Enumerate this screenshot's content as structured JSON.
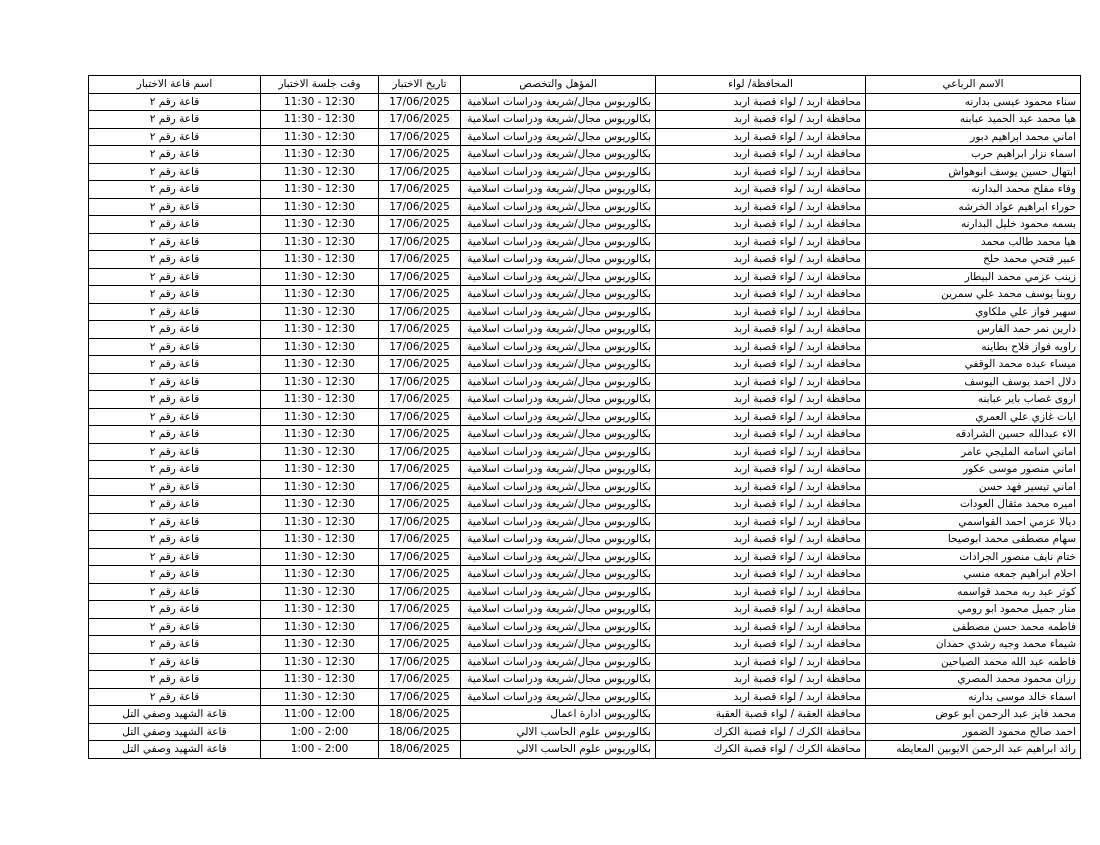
{
  "table": {
    "headers": [
      "الاسم الرباعي",
      "المحافظة/ لواء",
      "المؤهل والتخصص",
      "تاريخ الاختبار",
      "وقت جلسة الاختبار",
      "اسم قاعة الاختبار"
    ],
    "rows": [
      [
        "سناء محمود عيسى بدارنه",
        "محافظة اربد / لواء قصبة اربد",
        "بكالوريوس مجال/شريعة ودراسات اسلامية",
        "17/06/2025",
        "11:30 - 12:30",
        "قاعة رقم ٢"
      ],
      [
        "هيا محمد عبد الحميد عبابنه",
        "محافظة اربد / لواء قصبة اربد",
        "بكالوريوس مجال/شريعة ودراسات اسلامية",
        "17/06/2025",
        "11:30 - 12:30",
        "قاعة رقم ٢"
      ],
      [
        "اماني محمد ابراهيم دبور",
        "محافظة اربد / لواء قصبة اربد",
        "بكالوريوس مجال/شريعة ودراسات اسلامية",
        "17/06/2025",
        "11:30 - 12:30",
        "قاعة رقم ٢"
      ],
      [
        "اسماء نزار ابراهيم حرب",
        "محافظة اربد / لواء قصبة اربد",
        "بكالوريوس مجال/شريعة ودراسات اسلامية",
        "17/06/2025",
        "11:30 - 12:30",
        "قاعة رقم ٢"
      ],
      [
        "ابتهال حسين يوسف ابوهواش",
        "محافظة اربد / لواء قصبة اربد",
        "بكالوريوس مجال/شريعة ودراسات اسلامية",
        "17/06/2025",
        "11:30 - 12:30",
        "قاعة رقم ٢"
      ],
      [
        "وفاء مفلح محمد البدارنه",
        "محافظة اربد / لواء قصبة اربد",
        "بكالوريوس مجال/شريعة ودراسات اسلامية",
        "17/06/2025",
        "11:30 - 12:30",
        "قاعة رقم ٢"
      ],
      [
        "حوراء ابراهيم عواد الخرشه",
        "محافظة اربد / لواء قصبة اربد",
        "بكالوريوس مجال/شريعة ودراسات اسلامية",
        "17/06/2025",
        "11:30 - 12:30",
        "قاعة رقم ٢"
      ],
      [
        "بسمه محمود خليل البدارنه",
        "محافظة اربد / لواء قصبة اربد",
        "بكالوريوس مجال/شريعة ودراسات اسلامية",
        "17/06/2025",
        "11:30 - 12:30",
        "قاعة رقم ٢"
      ],
      [
        "هيا محمد طالب محمد",
        "محافظة اربد / لواء قصبة اربد",
        "بكالوريوس مجال/شريعة ودراسات اسلامية",
        "17/06/2025",
        "11:30 - 12:30",
        "قاعة رقم ٢"
      ],
      [
        "عبير فتحي محمد حلح",
        "محافظة اربد / لواء قصبة اربد",
        "بكالوريوس مجال/شريعة ودراسات اسلامية",
        "17/06/2025",
        "11:30 - 12:30",
        "قاعة رقم ٢"
      ],
      [
        "زينب عزمي محمد البيطار",
        "محافظة اربد / لواء قصبة اربد",
        "بكالوريوس مجال/شريعة ودراسات اسلامية",
        "17/06/2025",
        "11:30 - 12:30",
        "قاعة رقم ٢"
      ],
      [
        "روبنا يوسف محمد علي سمرين",
        "محافظة اربد / لواء قصبة اربد",
        "بكالوريوس مجال/شريعة ودراسات اسلامية",
        "17/06/2025",
        "11:30 - 12:30",
        "قاعة رقم ٢"
      ],
      [
        "سهير فواز علي ملكاوي",
        "محافظة اربد / لواء قصبة اربد",
        "بكالوريوس مجال/شريعة ودراسات اسلامية",
        "17/06/2025",
        "11:30 - 12:30",
        "قاعة رقم ٢"
      ],
      [
        "دارين نمر حمد الفارس",
        "محافظة اربد / لواء قصبة اربد",
        "بكالوريوس مجال/شريعة ودراسات اسلامية",
        "17/06/2025",
        "11:30 - 12:30",
        "قاعة رقم ٢"
      ],
      [
        "راويه فواز فلاح بطاينه",
        "محافظة اربد / لواء قصبة اربد",
        "بكالوريوس مجال/شريعة ودراسات اسلامية",
        "17/06/2025",
        "11:30 - 12:30",
        "قاعة رقم ٢"
      ],
      [
        "ميساء عبده محمد الوقفي",
        "محافظة اربد / لواء قصبة اربد",
        "بكالوريوس مجال/شريعة ودراسات اسلامية",
        "17/06/2025",
        "11:30 - 12:30",
        "قاعة رقم ٢"
      ],
      [
        "دلال احمد يوسف اليوسف",
        "محافظة اربد / لواء قصبة اربد",
        "بكالوريوس مجال/شريعة ودراسات اسلامية",
        "17/06/2025",
        "11:30 - 12:30",
        "قاعة رقم ٢"
      ],
      [
        "اروى غصاب باير عبابنه",
        "محافظة اربد / لواء قصبة اربد",
        "بكالوريوس مجال/شريعة ودراسات اسلامية",
        "17/06/2025",
        "11:30 - 12:30",
        "قاعة رقم ٢"
      ],
      [
        "ايات غازي علي العمري",
        "محافظة اربد / لواء قصبة اربد",
        "بكالوريوس مجال/شريعة ودراسات اسلامية",
        "17/06/2025",
        "11:30 - 12:30",
        "قاعة رقم ٢"
      ],
      [
        "الاء عبدالله حسين الشرادقه",
        "محافظة اربد / لواء قصبة اربد",
        "بكالوريوس مجال/شريعة ودراسات اسلامية",
        "17/06/2025",
        "11:30 - 12:30",
        "قاعة رقم ٢"
      ],
      [
        "اماني اسامه المليجي عامر",
        "محافظة اربد / لواء قصبة اربد",
        "بكالوريوس مجال/شريعة ودراسات اسلامية",
        "17/06/2025",
        "11:30 - 12:30",
        "قاعة رقم ٢"
      ],
      [
        "اماني منصور موسى عكور",
        "محافظة اربد / لواء قصبة اربد",
        "بكالوريوس مجال/شريعة ودراسات اسلامية",
        "17/06/2025",
        "11:30 - 12:30",
        "قاعة رقم ٢"
      ],
      [
        "اماني تيسير فهد حسن",
        "محافظة اربد / لواء قصبة اربد",
        "بكالوريوس مجال/شريعة ودراسات اسلامية",
        "17/06/2025",
        "11:30 - 12:30",
        "قاعة رقم ٢"
      ],
      [
        "اميره محمد مثقال العودات",
        "محافظة اربد / لواء قصبة اربد",
        "بكالوريوس مجال/شريعة ودراسات اسلامية",
        "17/06/2025",
        "11:30 - 12:30",
        "قاعة رقم ٢"
      ],
      [
        "ديالا عزمي احمد القواسمي",
        "محافظة اربد / لواء قصبة اربد",
        "بكالوريوس مجال/شريعة ودراسات اسلامية",
        "17/06/2025",
        "11:30 - 12:30",
        "قاعة رقم ٢"
      ],
      [
        "سهام مصطفى محمد ابوصيحا",
        "محافظة اربد / لواء قصبة اربد",
        "بكالوريوس مجال/شريعة ودراسات اسلامية",
        "17/06/2025",
        "11:30 - 12:30",
        "قاعة رقم ٢"
      ],
      [
        "ختام نايف منصور الجرادات",
        "محافظة اربد / لواء قصبة اربد",
        "بكالوريوس مجال/شريعة ودراسات اسلامية",
        "17/06/2025",
        "11:30 - 12:30",
        "قاعة رقم ٢"
      ],
      [
        "احلام ابراهيم جمعه منسي",
        "محافظة اربد / لواء قصبة اربد",
        "بكالوريوس مجال/شريعة ودراسات اسلامية",
        "17/06/2025",
        "11:30 - 12:30",
        "قاعة رقم ٢"
      ],
      [
        "كوثر عبد ربه محمد قواسمه",
        "محافظة اربد / لواء قصبة اربد",
        "بكالوريوس مجال/شريعة ودراسات اسلامية",
        "17/06/2025",
        "11:30 - 12:30",
        "قاعة رقم ٢"
      ],
      [
        "منار جميل محمود ابو رومي",
        "محافظة اربد / لواء قصبة اربد",
        "بكالوريوس مجال/شريعة ودراسات اسلامية",
        "17/06/2025",
        "11:30 - 12:30",
        "قاعة رقم ٢"
      ],
      [
        "فاطمه محمد حسن مصطفى",
        "محافظة اربد / لواء قصبة اربد",
        "بكالوريوس مجال/شريعة ودراسات اسلامية",
        "17/06/2025",
        "11:30 - 12:30",
        "قاعة رقم ٢"
      ],
      [
        "شيماء محمد وجيه رشدي حمدان",
        "محافظة اربد / لواء قصبة اربد",
        "بكالوريوس مجال/شريعة ودراسات اسلامية",
        "17/06/2025",
        "11:30 - 12:30",
        "قاعة رقم ٢"
      ],
      [
        "فاطمه عبد الله محمد الصياحين",
        "محافظة اربد / لواء قصبة اربد",
        "بكالوريوس مجال/شريعة ودراسات اسلامية",
        "17/06/2025",
        "11:30 - 12:30",
        "قاعة رقم ٢"
      ],
      [
        "رزان محمود محمد المصري",
        "محافظة اربد / لواء قصبة اربد",
        "بكالوريوس مجال/شريعة ودراسات اسلامية",
        "17/06/2025",
        "11:30 - 12:30",
        "قاعة رقم ٢"
      ],
      [
        "اسماء خالد موسى بدارنه",
        "محافظة اربد / لواء قصبة اربد",
        "بكالوريوس مجال/شريعة ودراسات اسلامية",
        "17/06/2025",
        "11:30 - 12:30",
        "قاعة رقم ٢"
      ],
      [
        "محمد فايز عبد الرحمن ابو عوض",
        "محافظة العقبة / لواء قصبة العقبة",
        "بكالوريوس ادارة اعمال",
        "18/06/2025",
        "11:00 - 12:00",
        "قاعة الشهيد وصفي التل"
      ],
      [
        "احمد صالح محمود الضمور",
        "محافظة الكرك / لواء قصبة الكرك",
        "بكالوريوس علوم الحاسب الالي",
        "18/06/2025",
        "1:00 - 2:00",
        "قاعة الشهيد وصفي التل"
      ],
      [
        "رائد ابراهيم عبد الرحمن الايوبين المعايطه",
        "محافظة الكرك / لواء قصبة الكرك",
        "بكالوريوس علوم الحاسب الالي",
        "18/06/2025",
        "1:00 - 2:00",
        "قاعة الشهيد وصفي التل"
      ]
    ]
  }
}
